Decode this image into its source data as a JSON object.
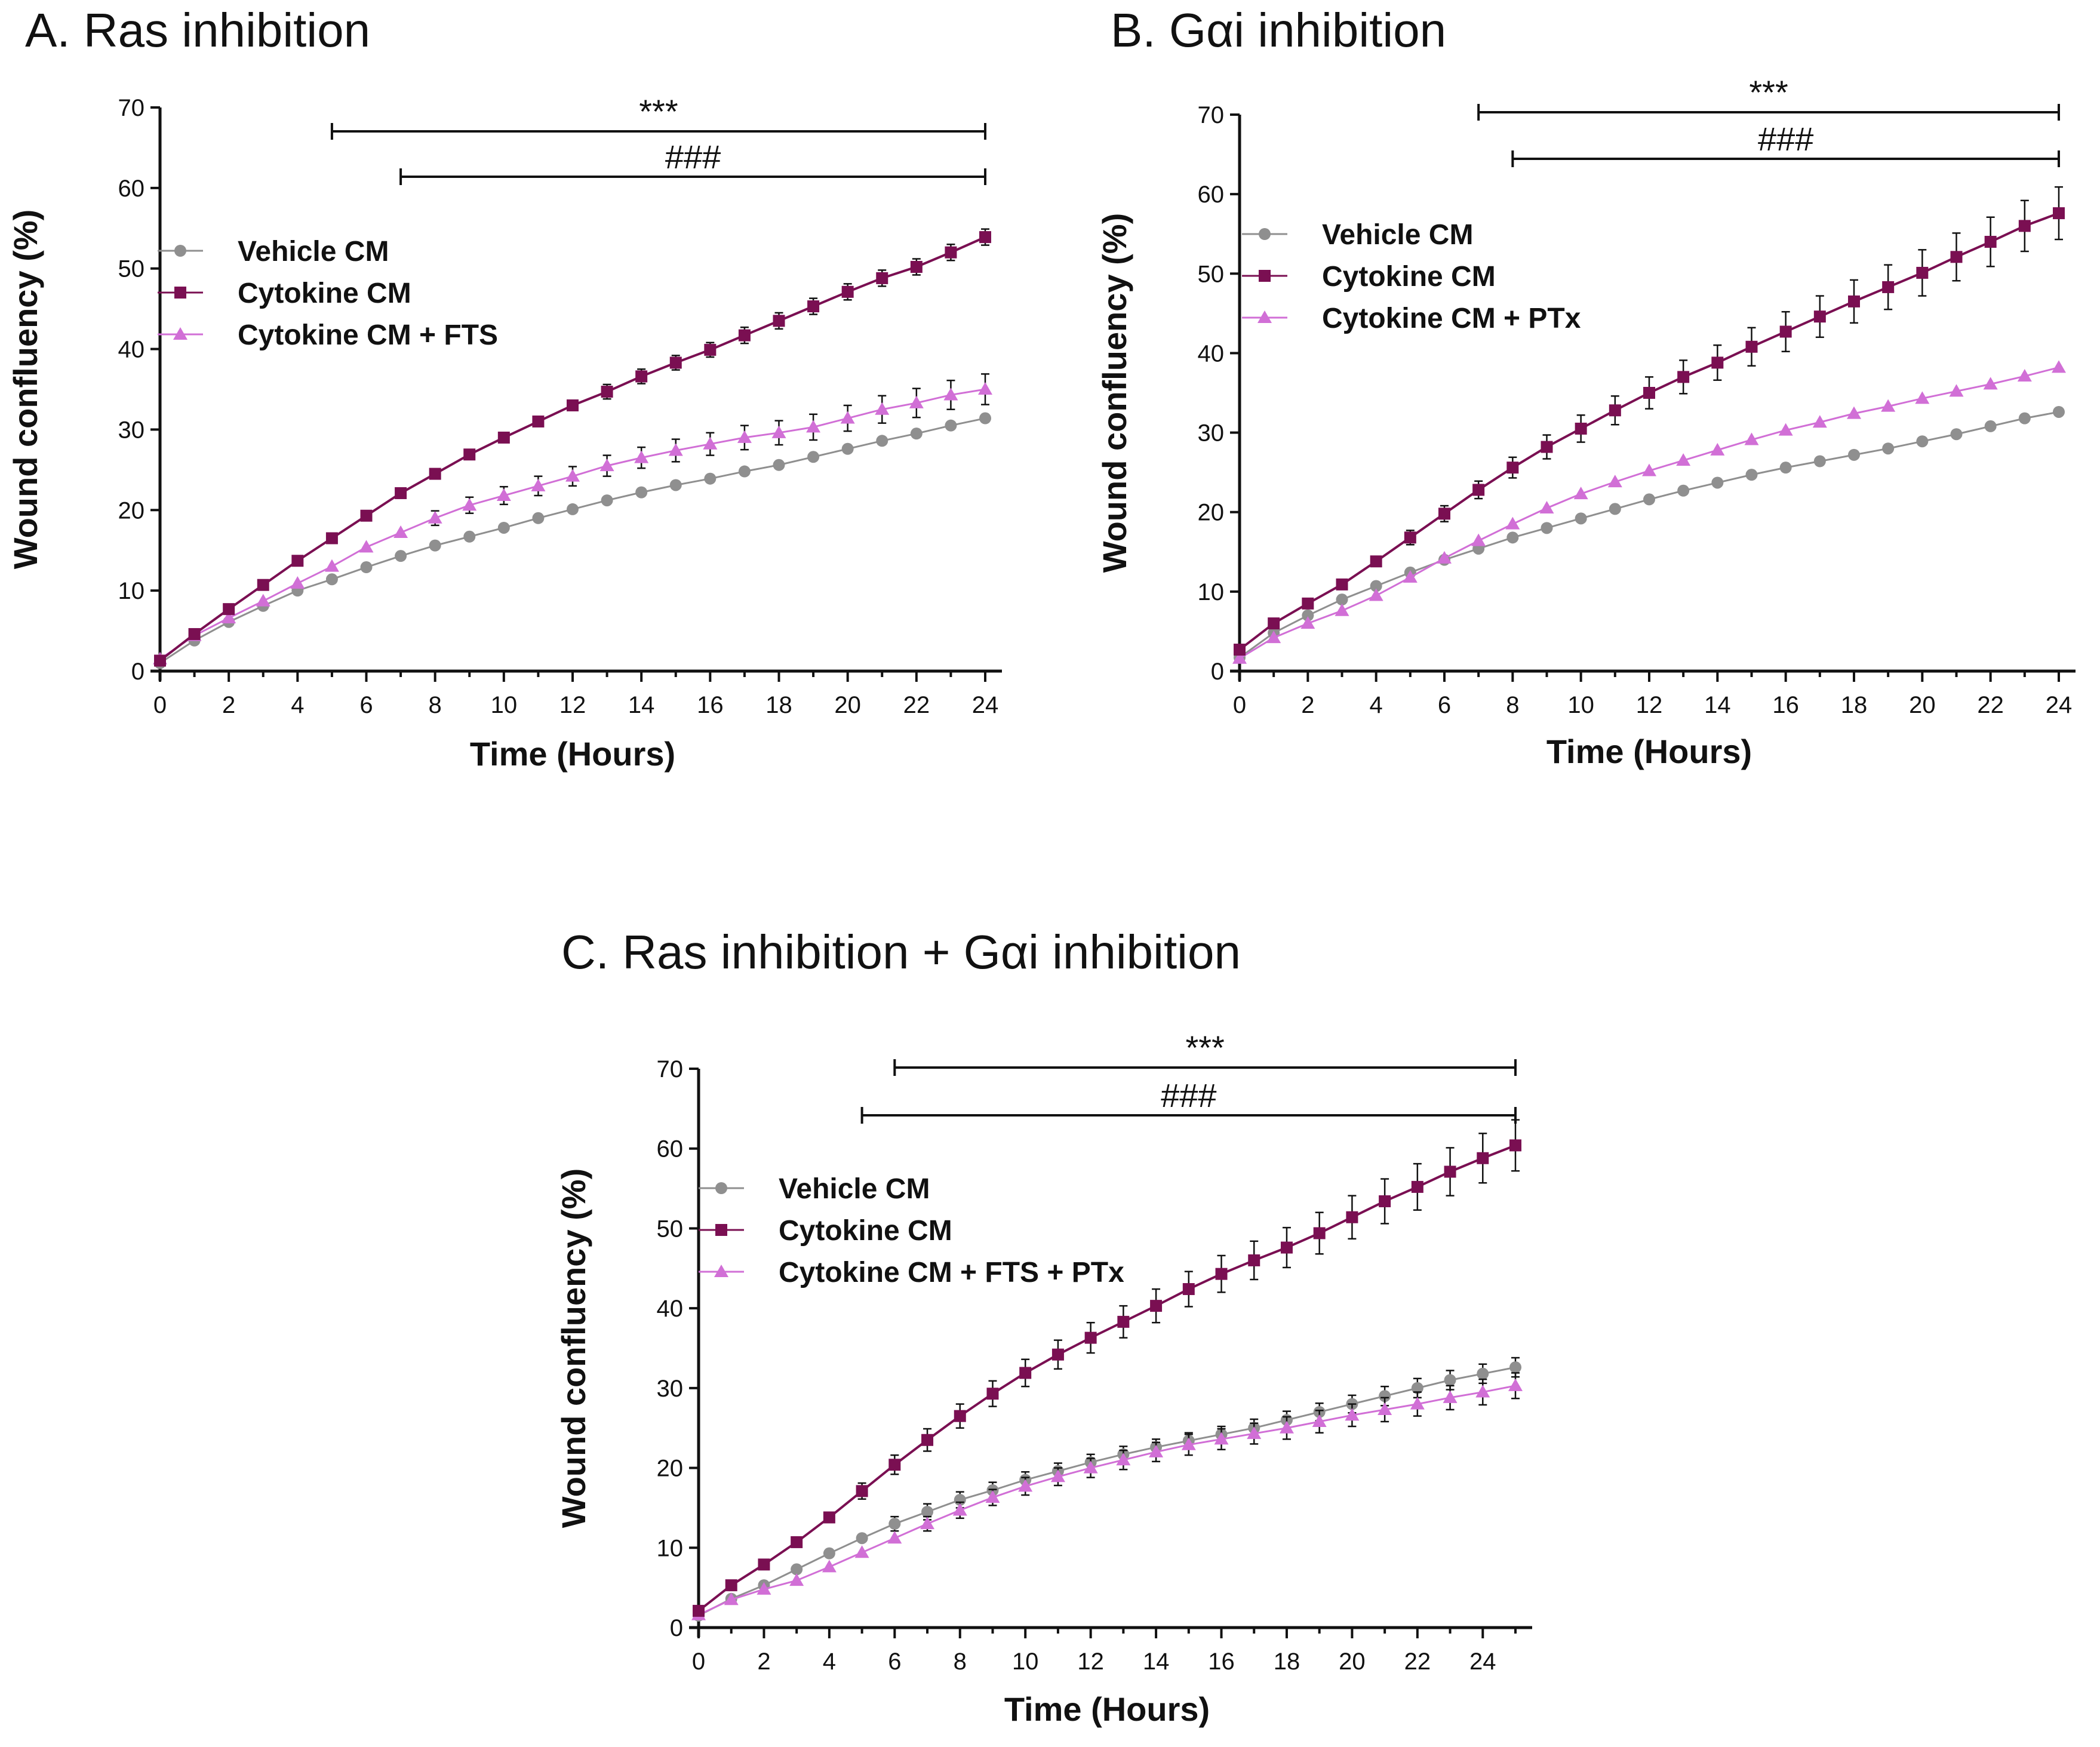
{
  "colors": {
    "vehicle": "#8f8f8f",
    "cytokine": "#7a0f52",
    "treated": "#d16fd6",
    "axis": "#111111"
  },
  "chart_data": [
    {
      "type": "line",
      "title": "A. Ras inhibition",
      "xlabel": "Time (Hours)",
      "ylabel": "Wound confluency (%)",
      "xlim": [
        0,
        24
      ],
      "ylim": [
        0,
        70
      ],
      "xticks": [
        0,
        2,
        4,
        6,
        8,
        10,
        12,
        14,
        16,
        18,
        20,
        22,
        24
      ],
      "yticks": [
        0,
        10,
        20,
        30,
        40,
        50,
        60,
        70
      ],
      "grid": false,
      "legend_position": "top-left",
      "x": [
        0,
        1,
        2,
        3,
        4,
        5,
        6,
        7,
        8,
        9,
        10,
        11,
        12,
        13,
        14,
        15,
        16,
        17,
        18,
        19,
        20,
        21,
        22,
        23,
        24
      ],
      "series": [
        {
          "name": "Vehicle CM",
          "marker": "circle",
          "color_key": "vehicle",
          "values": [
            1,
            3.8,
            6.1,
            8.1,
            10,
            11.4,
            12.9,
            14.3,
            15.6,
            16.7,
            17.8,
            19,
            20.1,
            21.2,
            22.2,
            23.1,
            23.9,
            24.8,
            25.6,
            26.6,
            27.6,
            28.6,
            29.5,
            30.5,
            31.4
          ],
          "errors": [
            0.4,
            0.4,
            0.4,
            0.4,
            0.4,
            0.4,
            0.4,
            0.4,
            0.4,
            0.4,
            0.4,
            0.4,
            0.4,
            0.4,
            0.4,
            0.4,
            0.4,
            0.4,
            0.5,
            0.5,
            0.5,
            0.6,
            0.6,
            0.6,
            0.7
          ]
        },
        {
          "name": "Cytokine CM",
          "marker": "square",
          "color_key": "cytokine",
          "values": [
            1.3,
            4.6,
            7.7,
            10.7,
            13.7,
            16.5,
            19.3,
            22.1,
            24.5,
            26.9,
            29,
            31,
            33,
            34.7,
            36.6,
            38.3,
            39.9,
            41.7,
            43.5,
            45.3,
            47.1,
            48.8,
            50.2,
            52,
            53.9
          ],
          "errors": [
            0.3,
            0.4,
            0.4,
            0.5,
            0.5,
            0.6,
            0.6,
            0.7,
            0.7,
            0.8,
            0.8,
            0.8,
            0.8,
            0.9,
            0.9,
            0.9,
            0.9,
            1,
            1,
            1,
            1,
            1,
            1,
            1,
            1
          ]
        },
        {
          "name": "Cytokine CM + FTS",
          "marker": "triangle",
          "color_key": "treated",
          "values": [
            1.5,
            4.4,
            6.6,
            8.7,
            10.9,
            13,
            15.4,
            17.2,
            19,
            20.6,
            21.8,
            23,
            24.2,
            25.5,
            26.5,
            27.4,
            28.2,
            29,
            29.6,
            30.3,
            31.4,
            32.5,
            33.3,
            34.3,
            35
          ],
          "errors": [
            0.3,
            0.4,
            0.4,
            0.5,
            0.5,
            0.6,
            0.7,
            0.8,
            0.9,
            1,
            1.1,
            1.2,
            1.2,
            1.3,
            1.3,
            1.4,
            1.4,
            1.5,
            1.5,
            1.6,
            1.6,
            1.7,
            1.8,
            1.8,
            1.9
          ]
        }
      ],
      "significance": [
        {
          "label": "***",
          "x_start": 5,
          "x_end": 24
        },
        {
          "label": "###",
          "x_start": 7,
          "x_end": 24
        }
      ]
    },
    {
      "type": "line",
      "title": "B. Gαi inhibition",
      "xlabel": "Time (Hours)",
      "ylabel": "Wound confluency (%)",
      "xlim": [
        0,
        24
      ],
      "ylim": [
        0,
        70
      ],
      "xticks": [
        0,
        2,
        4,
        6,
        8,
        10,
        12,
        14,
        16,
        18,
        20,
        22,
        24
      ],
      "yticks": [
        0,
        10,
        20,
        30,
        40,
        50,
        60,
        70
      ],
      "grid": false,
      "legend_position": "top-left",
      "x": [
        0,
        1,
        2,
        3,
        4,
        5,
        6,
        7,
        8,
        9,
        10,
        11,
        12,
        13,
        14,
        15,
        16,
        17,
        18,
        19,
        20,
        21,
        22,
        23,
        24
      ],
      "series": [
        {
          "name": "Vehicle CM",
          "marker": "circle",
          "color_key": "vehicle",
          "values": [
            1.7,
            4.8,
            7,
            9,
            10.7,
            12.4,
            14,
            15.4,
            16.8,
            18,
            19.2,
            20.4,
            21.6,
            22.7,
            23.7,
            24.7,
            25.6,
            26.4,
            27.2,
            28,
            28.9,
            29.8,
            30.8,
            31.8,
            32.6
          ],
          "errors": [
            0.3,
            0.3,
            0.3,
            0.3,
            0.3,
            0.3,
            0.3,
            0.3,
            0.3,
            0.3,
            0.3,
            0.3,
            0.3,
            0.3,
            0.3,
            0.3,
            0.3,
            0.3,
            0.3,
            0.3,
            0.3,
            0.3,
            0.3,
            0.3,
            0.3
          ]
        },
        {
          "name": "Cytokine CM",
          "marker": "square",
          "color_key": "cytokine",
          "values": [
            2.7,
            6,
            8.5,
            10.9,
            13.8,
            16.8,
            19.8,
            22.8,
            25.6,
            28.2,
            30.5,
            32.8,
            35,
            37,
            38.8,
            40.8,
            42.7,
            44.6,
            46.5,
            48.3,
            50.1,
            52.1,
            54,
            56,
            57.6
          ],
          "errors": [
            0.4,
            0.5,
            0.5,
            0.6,
            0.8,
            0.9,
            1,
            1.1,
            1.3,
            1.5,
            1.7,
            1.8,
            2,
            2.1,
            2.2,
            2.4,
            2.5,
            2.6,
            2.7,
            2.8,
            2.9,
            3,
            3.1,
            3.2,
            3.3
          ]
        },
        {
          "name": "Cytokine CM + PTx",
          "marker": "triangle",
          "color_key": "treated",
          "values": [
            1.6,
            4.2,
            6,
            7.6,
            9.5,
            11.8,
            14.2,
            16.4,
            18.5,
            20.5,
            22.3,
            23.8,
            25.2,
            26.5,
            27.8,
            29.1,
            30.3,
            31.3,
            32.4,
            33.3,
            34.3,
            35.2,
            36.1,
            37.1,
            38.2
          ],
          "errors": [
            0.2,
            0.3,
            0.3,
            0.3,
            0.3,
            0.3,
            0.3,
            0.3,
            0.3,
            0.3,
            0.3,
            0.3,
            0.3,
            0.3,
            0.3,
            0.3,
            0.3,
            0.3,
            0.3,
            0.3,
            0.3,
            0.3,
            0.3,
            0.3,
            0.3
          ]
        }
      ],
      "significance": [
        {
          "label": "***",
          "x_start": 7,
          "x_end": 24
        },
        {
          "label": "###",
          "x_start": 8,
          "x_end": 24
        }
      ]
    },
    {
      "type": "line",
      "title": "C. Ras inhibition + Gαi inhibition",
      "xlabel": "Time (Hours)",
      "ylabel": "Wound confluency (%)",
      "xlim": [
        0,
        25
      ],
      "ylim": [
        0,
        70
      ],
      "xticks": [
        0,
        2,
        4,
        6,
        8,
        10,
        12,
        14,
        16,
        18,
        20,
        22,
        24
      ],
      "yticks": [
        0,
        10,
        20,
        30,
        40,
        50,
        60,
        70
      ],
      "grid": false,
      "legend_position": "top-left",
      "x": [
        0,
        1,
        2,
        3,
        4,
        5,
        6,
        7,
        8,
        9,
        10,
        11,
        12,
        13,
        14,
        15,
        16,
        17,
        18,
        19,
        20,
        21,
        22,
        23,
        24,
        25
      ],
      "series": [
        {
          "name": "Vehicle CM",
          "marker": "circle",
          "color_key": "vehicle",
          "values": [
            1.5,
            3.6,
            5.3,
            7.3,
            9.3,
            11.2,
            13,
            14.5,
            16,
            17.2,
            18.5,
            19.6,
            20.7,
            21.7,
            22.6,
            23.4,
            24.2,
            25,
            26,
            27,
            28,
            29,
            30,
            31,
            31.8,
            32.6
          ],
          "errors": [
            0.4,
            0.4,
            0.5,
            0.6,
            0.7,
            0.8,
            0.9,
            1,
            1,
            1,
            1,
            1,
            1,
            1,
            1,
            1,
            1,
            1.1,
            1.1,
            1.1,
            1.1,
            1.2,
            1.2,
            1.2,
            1.2,
            1.2
          ]
        },
        {
          "name": "Cytokine CM",
          "marker": "square",
          "color_key": "cytokine",
          "values": [
            2.1,
            5.3,
            7.9,
            10.7,
            13.8,
            17.1,
            20.4,
            23.5,
            26.5,
            29.3,
            31.9,
            34.2,
            36.3,
            38.3,
            40.3,
            42.4,
            44.3,
            46,
            47.6,
            49.4,
            51.4,
            53.4,
            55.2,
            57.1,
            58.8,
            60.4
          ],
          "errors": [
            0.3,
            0.4,
            0.5,
            0.6,
            0.8,
            1,
            1.2,
            1.4,
            1.5,
            1.6,
            1.7,
            1.8,
            1.9,
            2,
            2.1,
            2.2,
            2.3,
            2.4,
            2.5,
            2.6,
            2.7,
            2.8,
            2.9,
            3,
            3.1,
            3.2
          ]
        },
        {
          "name": "Cytokine CM + FTS + PTx",
          "marker": "triangle",
          "color_key": "treated",
          "values": [
            1.6,
            3.5,
            4.8,
            5.9,
            7.6,
            9.4,
            11.2,
            13,
            14.7,
            16.3,
            17.7,
            18.9,
            20,
            21,
            22,
            22.9,
            23.6,
            24.3,
            25,
            25.8,
            26.6,
            27.3,
            28,
            28.8,
            29.5,
            30.3
          ],
          "errors": [
            0.3,
            0.3,
            0.4,
            0.5,
            0.6,
            0.7,
            0.8,
            0.9,
            1,
            1,
            1.1,
            1.1,
            1.2,
            1.2,
            1.2,
            1.3,
            1.3,
            1.3,
            1.4,
            1.4,
            1.4,
            1.5,
            1.5,
            1.5,
            1.6,
            1.6
          ]
        }
      ],
      "significance": [
        {
          "label": "***",
          "x_start": 6,
          "x_end": 25
        },
        {
          "label": "###",
          "x_start": 5,
          "x_end": 25
        }
      ]
    }
  ]
}
